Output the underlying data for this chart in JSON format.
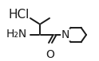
{
  "background_color": "#ffffff",
  "hcl_text": "HCl",
  "h2n_text": "H₂N",
  "o_text": "O",
  "n_text": "N",
  "font_size": 10,
  "line_color": "#1a1a1a",
  "line_width": 1.4,
  "figsize": [
    1.24,
    0.77
  ],
  "dpi": 100
}
